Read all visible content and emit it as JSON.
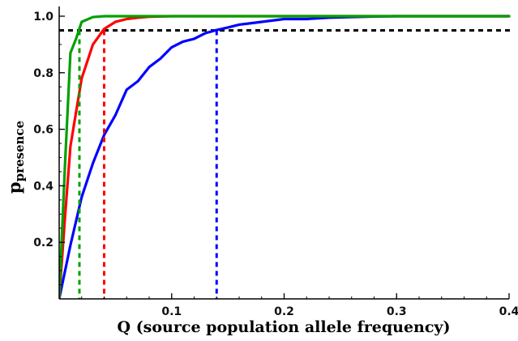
{
  "chart_data": {
    "type": "line",
    "xlabel": "Q (source population allele frequency)",
    "ylabel_main": "p",
    "ylabel_sub": "presence",
    "xlim": [
      0,
      0.4
    ],
    "ylim": [
      0,
      1.0
    ],
    "x_ticks": [
      {
        "value": 0.1,
        "label": "0.1"
      },
      {
        "value": 0.2,
        "label": "0.2"
      },
      {
        "value": 0.3,
        "label": "0.3"
      },
      {
        "value": 0.4,
        "label": "0.4"
      }
    ],
    "y_ticks": [
      {
        "value": 0.2,
        "label": "0.2"
      },
      {
        "value": 0.4,
        "label": "0.4"
      },
      {
        "value": 0.6,
        "label": "0.6"
      },
      {
        "value": 0.8,
        "label": "0.8"
      },
      {
        "value": 1.0,
        "label": "1.0"
      }
    ],
    "threshold": {
      "y": 0.95,
      "color": "#000000"
    },
    "grid": false,
    "series": [
      {
        "color": "#0000ff",
        "x": [
          0,
          0.01,
          0.02,
          0.03,
          0.04,
          0.05,
          0.06,
          0.07,
          0.08,
          0.09,
          0.1,
          0.11,
          0.12,
          0.13,
          0.14,
          0.15,
          0.16,
          0.17,
          0.18,
          0.19,
          0.2,
          0.22,
          0.24,
          0.26,
          0.28,
          0.3,
          0.35,
          0.4
        ],
        "y": [
          0,
          0.19,
          0.36,
          0.48,
          0.58,
          0.65,
          0.74,
          0.77,
          0.82,
          0.85,
          0.89,
          0.91,
          0.92,
          0.94,
          0.951,
          0.96,
          0.97,
          0.975,
          0.98,
          0.985,
          0.99,
          0.99,
          0.995,
          0.997,
          0.999,
          1.0,
          1.0,
          1.0
        ],
        "crossing_x": 0.14
      },
      {
        "color": "#ff0000",
        "x": [
          0,
          0.005,
          0.01,
          0.015,
          0.02,
          0.03,
          0.04,
          0.05,
          0.06,
          0.07,
          0.08,
          0.1,
          0.15,
          0.2,
          0.3,
          0.4
        ],
        "y": [
          0,
          0.28,
          0.54,
          0.66,
          0.78,
          0.9,
          0.955,
          0.98,
          0.99,
          0.995,
          0.998,
          1.0,
          1.0,
          1.0,
          1.0,
          1.0
        ],
        "crossing_x": 0.04
      },
      {
        "color": "#00a000",
        "x": [
          0,
          0.005,
          0.01,
          0.015,
          0.02,
          0.03,
          0.04,
          0.1,
          0.2,
          0.3,
          0.4
        ],
        "y": [
          0,
          0.46,
          0.87,
          0.92,
          0.98,
          0.997,
          1.0,
          1.0,
          1.0,
          1.0,
          1.0
        ],
        "crossing_x": 0.018
      }
    ]
  }
}
